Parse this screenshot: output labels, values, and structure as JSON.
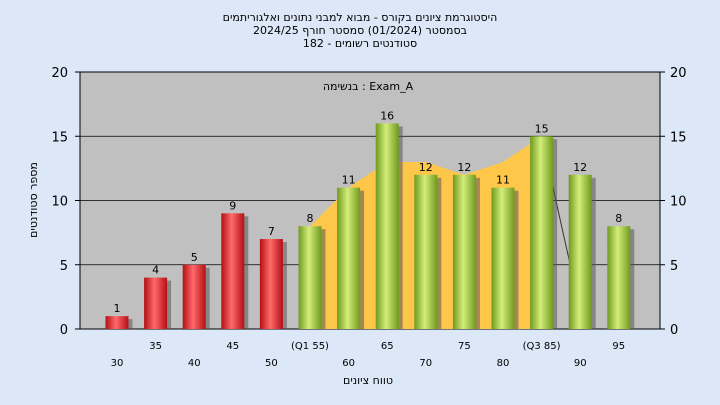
{
  "chart_data": {
    "type": "bar",
    "title_lines": [
      "היסטוגרמת ציונים בקורס - מבוא למבני נתונים ואלגוריתמים",
      "בסמסטר  (01/2024)  סמסטר חורף 2024/25",
      "182 - סטודנטים רשומים"
    ],
    "annotation": "בנשימה : Exam_A",
    "xlabel": "טווח ציונים",
    "ylabel": "מספר סטודנטים",
    "ylim": [
      0,
      20
    ],
    "yticks": [
      0,
      5,
      10,
      15,
      20
    ],
    "categories": [
      "30",
      "35",
      "40",
      "45",
      "50",
      "(Q1 55)",
      "60",
      "65",
      "70",
      "75",
      "80",
      "(Q3 85)",
      "90",
      "95"
    ],
    "values": [
      1,
      4,
      5,
      9,
      7,
      8,
      11,
      16,
      12,
      12,
      11,
      15,
      12,
      8
    ],
    "bar_groups": [
      "red",
      "red",
      "red",
      "red",
      "red",
      "green",
      "green",
      "green",
      "green",
      "green",
      "green",
      "green",
      "green",
      "green"
    ],
    "iqr_area": [
      8,
      11,
      13,
      13,
      12,
      13,
      15
    ],
    "colors": {
      "red": "#e8262a",
      "green": "#9ac53a",
      "area": "#ffc74a",
      "plot_bg": "#c0c0c0",
      "page_bg": "#dce8f7"
    },
    "grid": true,
    "legend": "none"
  }
}
